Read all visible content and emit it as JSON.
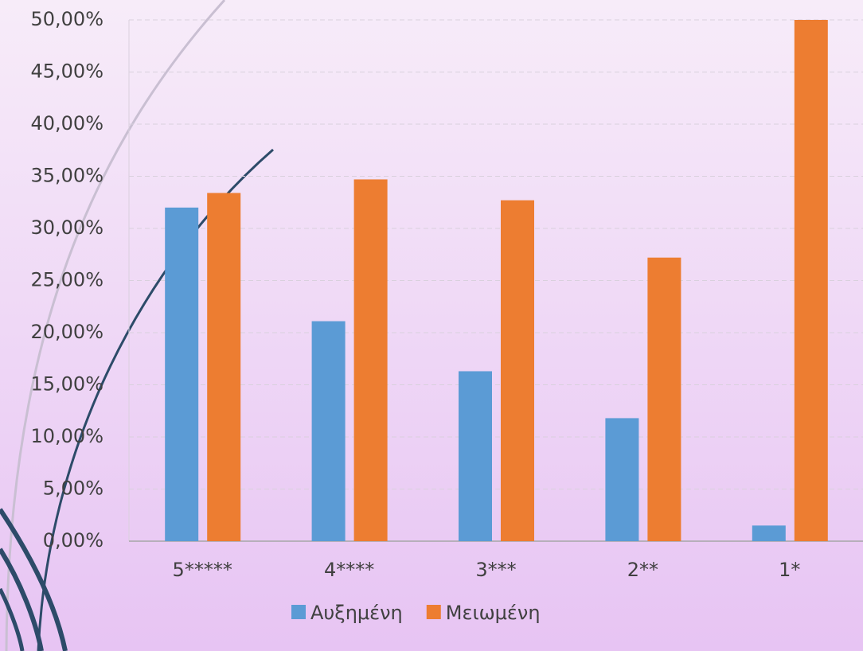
{
  "chart_data": {
    "type": "bar",
    "categories": [
      "5*****",
      "4****",
      "3***",
      "2**",
      "1*"
    ],
    "series": [
      {
        "name": "Αυξημένη",
        "color": "#5b9bd5",
        "values": [
          32.0,
          21.1,
          16.3,
          11.8,
          1.5
        ]
      },
      {
        "name": "Μειωμένη",
        "color": "#ed7d31",
        "values": [
          33.4,
          34.7,
          32.7,
          27.2,
          50.0
        ]
      }
    ],
    "ylim": [
      0,
      50
    ],
    "yticks": [
      {
        "value": 0,
        "label": "0,00%"
      },
      {
        "value": 5,
        "label": "5,00%"
      },
      {
        "value": 10,
        "label": "10,00%"
      },
      {
        "value": 15,
        "label": "15,00%"
      },
      {
        "value": 20,
        "label": "20,00%"
      },
      {
        "value": 25,
        "label": "25,00%"
      },
      {
        "value": 30,
        "label": "30,00%"
      },
      {
        "value": 35,
        "label": "35,00%"
      },
      {
        "value": 40,
        "label": "40,00%"
      },
      {
        "value": 45,
        "label": "45,00%"
      },
      {
        "value": 50,
        "label": "50,00%"
      }
    ],
    "grid": true,
    "legend": "bottom"
  }
}
